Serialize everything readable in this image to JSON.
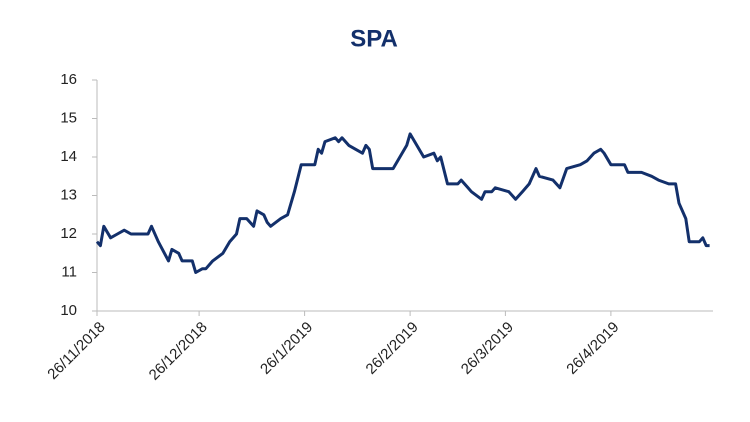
{
  "chart_data": {
    "type": "line",
    "title": "SPA",
    "x": [
      "26/11/2018",
      "27/11/2018",
      "28/11/2018",
      "30/11/2018",
      "2/12/2018",
      "4/12/2018",
      "6/12/2018",
      "11/12/2018",
      "12/12/2018",
      "14/12/2018",
      "17/12/2018",
      "18/12/2018",
      "20/12/2018",
      "21/12/2018",
      "24/12/2018",
      "25/12/2018",
      "27/12/2018",
      "28/12/2018",
      "30/12/2018",
      "2/1/2019",
      "4/1/2019",
      "6/1/2019",
      "7/1/2019",
      "9/1/2019",
      "11/1/2019",
      "12/1/2019",
      "14/1/2019",
      "15/1/2019",
      "16/1/2019",
      "19/1/2019",
      "21/1/2019",
      "23/1/2019",
      "25/1/2019",
      "29/1/2019",
      "30/1/2019",
      "31/1/2019",
      "1/2/2019",
      "4/2/2019",
      "5/2/2019",
      "6/2/2019",
      "8/2/2019",
      "12/2/2019",
      "13/2/2019",
      "14/2/2019",
      "15/2/2019",
      "21/2/2019",
      "23/2/2019",
      "25/2/2019",
      "26/2/2019",
      "2/3/2019",
      "5/3/2019",
      "6/3/2019",
      "7/3/2019",
      "9/3/2019",
      "12/3/2019",
      "13/3/2019",
      "15/3/2019",
      "16/3/2019",
      "19/3/2019",
      "20/3/2019",
      "22/3/2019",
      "23/3/2019",
      "27/3/2019",
      "29/3/2019",
      "31/3/2019",
      "2/4/2019",
      "4/4/2019",
      "5/4/2019",
      "9/4/2019",
      "11/4/2019",
      "13/4/2019",
      "17/4/2019",
      "19/4/2019",
      "21/4/2019",
      "23/4/2019",
      "24/4/2019",
      "26/4/2019",
      "30/4/2019",
      "1/5/2019",
      "5/5/2019",
      "8/5/2019",
      "10/5/2019",
      "13/5/2019",
      "15/5/2019",
      "16/5/2019",
      "18/5/2019",
      "19/5/2019",
      "22/5/2019",
      "23/5/2019",
      "24/5/2019",
      "25/5/2019"
    ],
    "series": [
      {
        "name": "SPA",
        "color": "#13306b",
        "values": [
          11.8,
          11.7,
          12.2,
          11.9,
          12.0,
          12.1,
          12.0,
          12.0,
          12.2,
          11.8,
          11.3,
          11.6,
          11.5,
          11.3,
          11.3,
          11.0,
          11.1,
          11.1,
          11.3,
          11.5,
          11.8,
          12.0,
          12.4,
          12.4,
          12.2,
          12.6,
          12.5,
          12.3,
          12.2,
          12.4,
          12.5,
          13.1,
          13.8,
          13.8,
          14.2,
          14.1,
          14.4,
          14.5,
          14.4,
          14.5,
          14.3,
          14.1,
          14.3,
          14.2,
          13.7,
          13.7,
          14.0,
          14.3,
          14.6,
          14.0,
          14.1,
          13.9,
          14.0,
          13.3,
          13.3,
          13.4,
          13.2,
          13.1,
          12.9,
          13.1,
          13.1,
          13.2,
          13.1,
          12.9,
          13.1,
          13.3,
          13.7,
          13.5,
          13.4,
          13.2,
          13.7,
          13.8,
          13.9,
          14.1,
          14.2,
          14.1,
          13.8,
          13.8,
          13.6,
          13.6,
          13.5,
          13.4,
          13.3,
          13.3,
          12.8,
          12.4,
          11.8,
          11.8,
          11.9,
          11.7,
          11.7
        ]
      }
    ],
    "xlim": [
      "26/11/2018",
      "26/5/2019"
    ],
    "xticks": [
      "26/11/2018",
      "26/12/2018",
      "26/1/2019",
      "26/2/2019",
      "26/3/2019",
      "26/4/2019"
    ],
    "ylim": [
      10,
      16
    ],
    "yticks": [
      10,
      11,
      12,
      13,
      14,
      15,
      16
    ]
  }
}
